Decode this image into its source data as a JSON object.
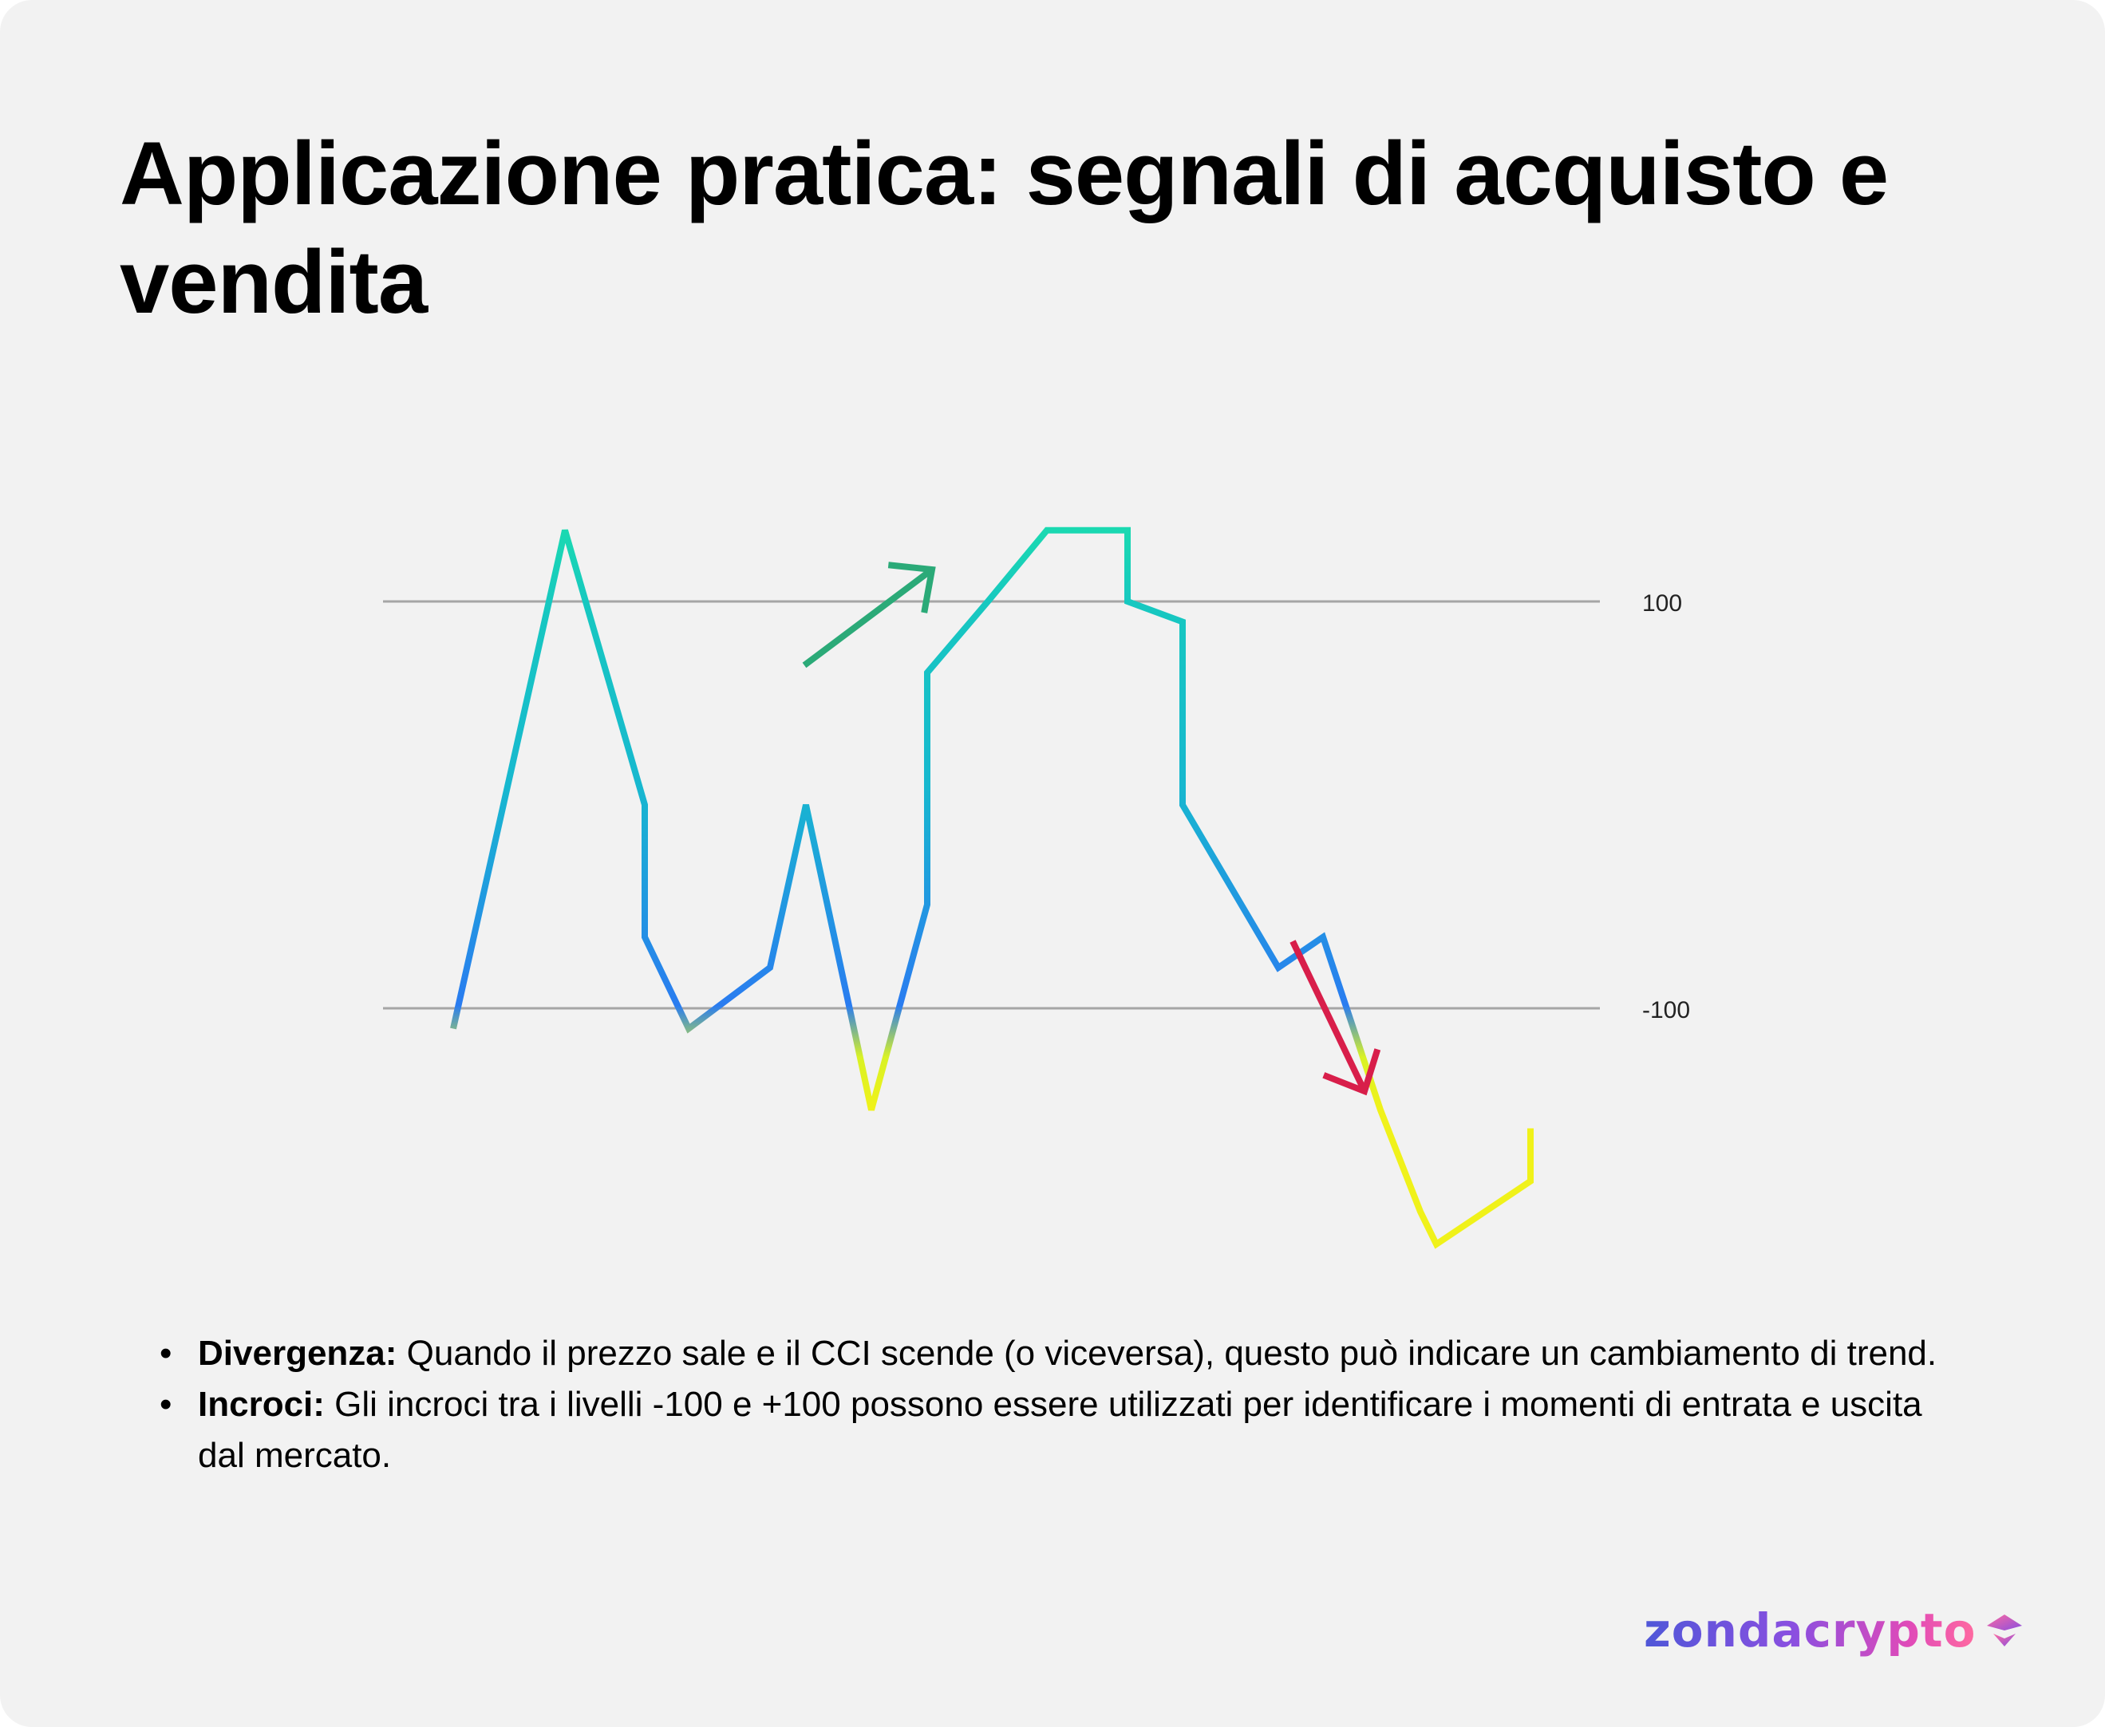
{
  "title": "Applicazione pratica: segnali di acquisto e vendita",
  "chart_data": {
    "type": "line",
    "series": [
      {
        "values": [
          -110,
          135,
          0,
          -65,
          -110,
          -80,
          0,
          -150,
          -49,
          65,
          100,
          135,
          135,
          100,
          90,
          0,
          -80,
          -65,
          -150,
          -200,
          -216,
          -185,
          -159
        ]
      }
    ],
    "reference_lines": [
      {
        "y": 100,
        "label": "100"
      },
      {
        "y": -100,
        "label": "-100"
      }
    ],
    "annotations": [
      {
        "type": "arrow",
        "direction": "up",
        "color": "#2baa78"
      },
      {
        "type": "arrow",
        "direction": "down",
        "color": "#d81e4a"
      }
    ],
    "line_gradient": [
      "#f0f21a",
      "#2a7cf0",
      "#17c2c8",
      "#1ee3a8"
    ],
    "grid": false,
    "legend": "none"
  },
  "bullets": [
    {
      "term": "Divergenza:",
      "text": " Quando il prezzo sale e il CCI scende (o viceversa), questo può indicare un cambiamento di trend."
    },
    {
      "term": "Incroci:",
      "text": " Gli incroci tra i livelli -100 e +100 possono essere utilizzati per identificare i momenti di entrata e uscita dal mercato."
    }
  ],
  "brand": {
    "name": "zondacrypto",
    "icon": "zonda-logo-icon"
  }
}
